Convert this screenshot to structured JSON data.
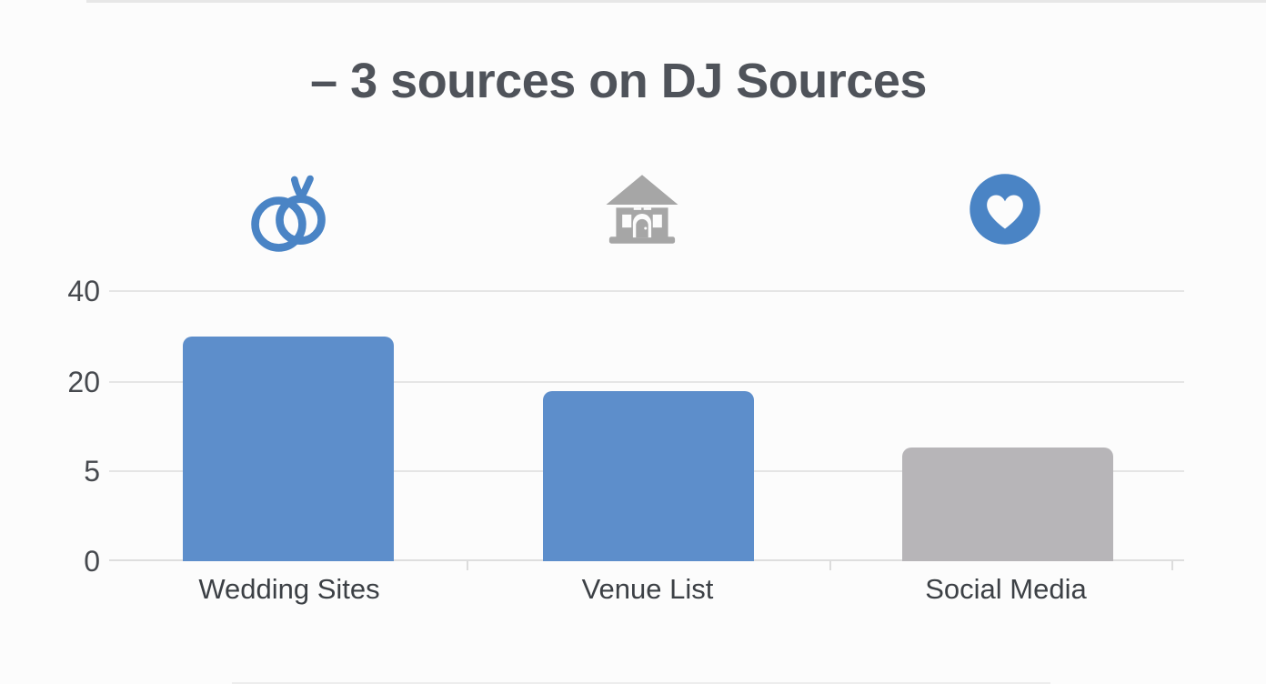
{
  "chart_data": {
    "type": "bar",
    "title": "– 3 sources on DJ Sources",
    "categories": [
      "Wedding Sites",
      "Venue List",
      "Social Media"
    ],
    "values": [
      30,
      19,
      9
    ],
    "series": [
      {
        "name": "sources",
        "values": [
          30,
          19,
          9
        ]
      }
    ],
    "bar_colors": [
      "#5d8ecb",
      "#5d8ecb",
      "#b7b5b8"
    ],
    "category_icons": [
      "wedding-rings-icon",
      "venue-house-icon",
      "heart-circle-icon"
    ],
    "y_ticks_top_to_bottom": [
      "40",
      "20",
      "5",
      "0"
    ],
    "y_axis_note": "gridlines evenly spaced though tick values 0,5,20,40 are non-linear",
    "xlabel": "",
    "ylabel": "",
    "grid": true,
    "legend": false,
    "render": {
      "height_pct": [
        83.2,
        63.0,
        42.1
      ]
    }
  },
  "colors": {
    "background": "#fcfcfc",
    "accent_blue": "#5d8ecb",
    "icon_blue": "#4a84c5",
    "bar_gray": "#b7b5b8",
    "icon_gray": "#a6a6a6",
    "title_text": "#4f535a",
    "axis_text": "#46494e",
    "label_text": "#3c4045",
    "gridline": "#e5e5e5"
  }
}
